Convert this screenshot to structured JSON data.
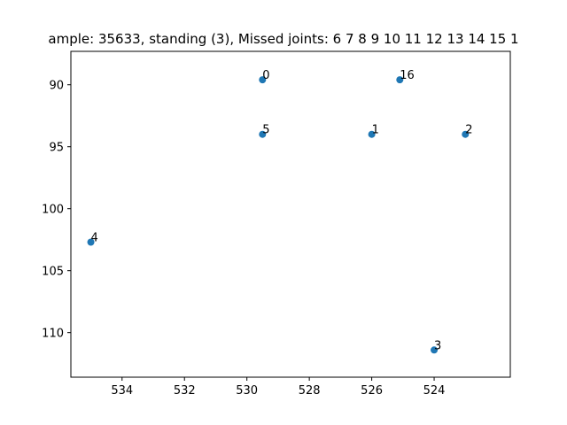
{
  "chart_data": {
    "type": "scatter",
    "title": "ample: 35633, standing (3), Missed joints: 6  7  8  9  10  11  12  13  14  15  1",
    "xlabel": "",
    "ylabel": "",
    "xlim": [
      535.0,
      522.2
    ],
    "ylim": [
      112.4,
      88.5
    ],
    "x_inverted": true,
    "y_inverted": true,
    "grid": false,
    "x_ticks": [
      534,
      532,
      530,
      528,
      526,
      524
    ],
    "y_ticks": [
      90,
      95,
      100,
      105,
      110
    ],
    "marker_color": "#1f77b4",
    "points": [
      {
        "label": "0",
        "x": 529.5,
        "y": 89.6
      },
      {
        "label": "16",
        "x": 525.1,
        "y": 89.6
      },
      {
        "label": "5",
        "x": 529.5,
        "y": 94.0
      },
      {
        "label": "1",
        "x": 526.0,
        "y": 94.0
      },
      {
        "label": "2",
        "x": 523.0,
        "y": 94.0
      },
      {
        "label": "4",
        "x": 535.0,
        "y": 102.7
      },
      {
        "label": "3",
        "x": 524.0,
        "y": 111.4
      }
    ]
  }
}
